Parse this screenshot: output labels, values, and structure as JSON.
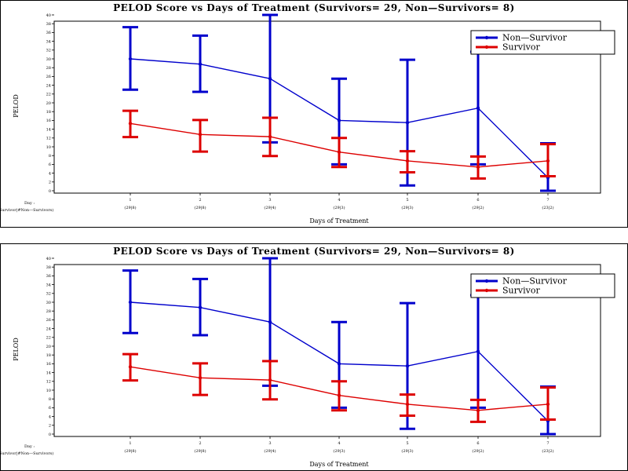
{
  "chart_data": [
    {
      "type": "line",
      "title": "PELOD Score vs Days of Treatment (Survivors= 29, Non—Survivors= 8)",
      "xlabel": "Days of Treatment",
      "ylabel": "PELOD",
      "xaxis_corner_label": "Day :",
      "xaxis_corner_sublabel": "(Survivor|#Non—Survivors)",
      "categories": [
        "1",
        "2",
        "3",
        "4",
        "5",
        "6",
        "7"
      ],
      "category_sublabels": [
        "(29|8)",
        "(29|8)",
        "(29|4)",
        "(29|3)",
        "(29|3)",
        "(29|2)",
        "(23|2)"
      ],
      "ylim": [
        0,
        40
      ],
      "yticks": [
        0,
        2,
        4,
        6,
        8,
        10,
        12,
        14,
        16,
        18,
        20,
        22,
        24,
        26,
        28,
        30,
        32,
        34,
        36,
        38,
        40
      ],
      "legend_position": "top-right",
      "series": [
        {
          "name": "Non—Survivor",
          "color": "#0000cc",
          "values": [
            30,
            28.8,
            25.5,
            16,
            15.5,
            18.8,
            3
          ],
          "upper": [
            37.2,
            35.3,
            40,
            25.5,
            29.8,
            31.6,
            10.8
          ],
          "lower": [
            23,
            22.5,
            11,
            6,
            1.2,
            6,
            0
          ]
        },
        {
          "name": "Survivor",
          "color": "#dd0000",
          "values": [
            15.3,
            12.8,
            12.3,
            8.8,
            6.8,
            5.4,
            6.8
          ],
          "upper": [
            18.2,
            16.1,
            16.6,
            12,
            9,
            7.8,
            10.6
          ],
          "lower": [
            12.2,
            8.9,
            7.9,
            5.4,
            4.2,
            2.8,
            3.3
          ]
        }
      ]
    },
    {
      "type": "line",
      "title": "PELOD Score vs Days of Treatment (Survivors= 29, Non—Survivors= 8)",
      "xlabel": "Days of Treatment",
      "ylabel": "PELOD",
      "xaxis_corner_label": "Day :",
      "xaxis_corner_sublabel": "(Survivor|#Non—Survivors)",
      "categories": [
        "1",
        "2",
        "3",
        "4",
        "5",
        "6",
        "7"
      ],
      "category_sublabels": [
        "(29|8)",
        "(29|8)",
        "(29|4)",
        "(29|3)",
        "(29|3)",
        "(29|2)",
        "(23|2)"
      ],
      "ylim": [
        0,
        40
      ],
      "yticks": [
        0,
        2,
        4,
        6,
        8,
        10,
        12,
        14,
        16,
        18,
        20,
        22,
        24,
        26,
        28,
        30,
        32,
        34,
        36,
        38,
        40
      ],
      "legend_position": "top-right",
      "series": [
        {
          "name": "Non—Survivor",
          "color": "#0000cc",
          "values": [
            30,
            28.8,
            25.5,
            16,
            15.5,
            18.8,
            3
          ],
          "upper": [
            37.2,
            35.3,
            40,
            25.5,
            29.8,
            31.6,
            10.8
          ],
          "lower": [
            23,
            22.5,
            11,
            6,
            1.2,
            6,
            0
          ]
        },
        {
          "name": "Survivor",
          "color": "#dd0000",
          "values": [
            15.3,
            12.8,
            12.3,
            8.8,
            6.8,
            5.4,
            6.8
          ],
          "upper": [
            18.2,
            16.1,
            16.6,
            12,
            9,
            7.8,
            10.6
          ],
          "lower": [
            12.2,
            8.9,
            7.9,
            5.4,
            4.2,
            2.8,
            3.3
          ]
        }
      ]
    }
  ]
}
